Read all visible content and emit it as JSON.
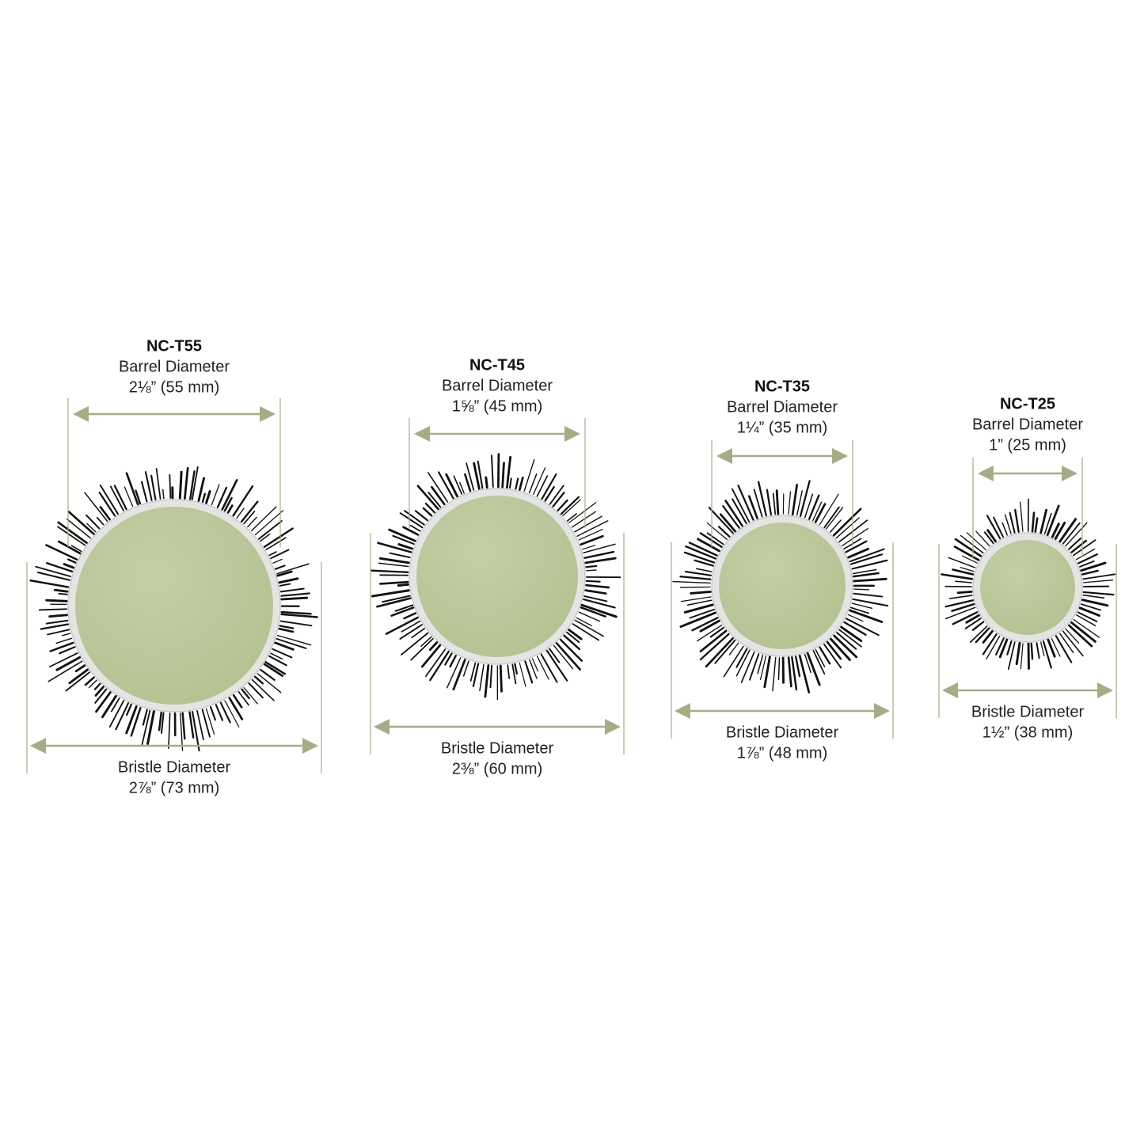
{
  "products": [
    {
      "model": "NC-T55",
      "barrel_label": "Barrel Diameter",
      "barrel_size": "2⅛” (55 mm)",
      "bristle_label": "Bristle Diameter",
      "bristle_size": "2⅞” (73 mm)"
    },
    {
      "model": "NC-T45",
      "barrel_label": "Barrel Diameter",
      "barrel_size": "1⅝” (45 mm)",
      "bristle_label": "Bristle Diameter",
      "bristle_size": "2⅜” (60 mm)"
    },
    {
      "model": "NC-T35",
      "barrel_label": "Barrel Diameter",
      "barrel_size": "1¼” (35 mm)",
      "bristle_label": "Bristle Diameter",
      "bristle_size": "1⅞” (48 mm)"
    },
    {
      "model": "NC-T25",
      "barrel_label": "Barrel Diameter",
      "barrel_size": "1” (25 mm)",
      "bristle_label": "Bristle Diameter",
      "bristle_size": "1½” (38 mm)"
    }
  ]
}
